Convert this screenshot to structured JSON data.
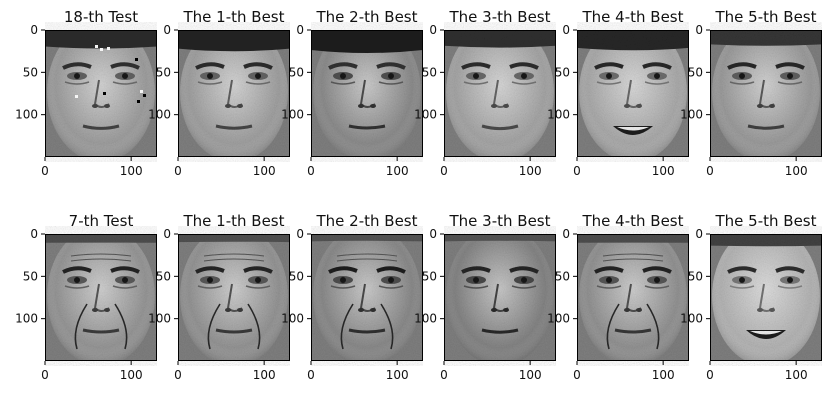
{
  "figure": {
    "rows": [
      {
        "panels": [
          {
            "title": "18-th Test",
            "face": {
              "tone": 138,
              "hair": 0.75,
              "smile": 0.1,
              "eyebrow": 0.55,
              "noise": true
            }
          },
          {
            "title": "The 1-th Best",
            "face": {
              "tone": 140,
              "hair": 0.9,
              "smile": 0.05,
              "eyebrow": 0.65,
              "noise": false
            }
          },
          {
            "title": "The 2-th Best",
            "face": {
              "tone": 120,
              "hair": 1.0,
              "smile": 0.0,
              "eyebrow": 0.5,
              "noise": false
            }
          },
          {
            "title": "The 3-th Best",
            "face": {
              "tone": 145,
              "hair": 0.7,
              "smile": 0.15,
              "eyebrow": 0.6,
              "noise": false
            }
          },
          {
            "title": "The 4-th Best",
            "face": {
              "tone": 150,
              "hair": 0.85,
              "smile": 1.0,
              "eyebrow": 0.7,
              "noise": false
            }
          },
          {
            "title": "The 5-th Best",
            "face": {
              "tone": 135,
              "hair": 0.6,
              "smile": 0.05,
              "eyebrow": 0.75,
              "noise": false
            }
          }
        ]
      },
      {
        "panels": [
          {
            "title": "7-th Test",
            "face": {
              "tone": 130,
              "hair": 0.2,
              "smile": 0.0,
              "eyebrow": 0.85,
              "noise": false,
              "wrinkles": true
            }
          },
          {
            "title": "The 1-th Best",
            "face": {
              "tone": 128,
              "hair": 0.15,
              "smile": 0.0,
              "eyebrow": 0.8,
              "noise": false,
              "wrinkles": true
            }
          },
          {
            "title": "The 2-th Best",
            "face": {
              "tone": 118,
              "hair": 0.1,
              "smile": 0.0,
              "eyebrow": 0.95,
              "noise": false,
              "wrinkles": true
            }
          },
          {
            "title": "The 3-th Best",
            "face": {
              "tone": 112,
              "hair": 0.1,
              "smile": 0.05,
              "eyebrow": 0.8,
              "noise": false,
              "wrinkles": false
            }
          },
          {
            "title": "The 4-th Best",
            "face": {
              "tone": 126,
              "hair": 0.2,
              "smile": 0.0,
              "eyebrow": 0.85,
              "noise": false,
              "wrinkles": true
            }
          },
          {
            "title": "The 5-th Best",
            "face": {
              "tone": 160,
              "hair": 0.4,
              "smile": 0.6,
              "eyebrow": 0.6,
              "noise": false,
              "wrinkles": false
            }
          }
        ]
      }
    ],
    "x_ticks": [
      0,
      100
    ],
    "y_ticks": [
      0,
      50,
      100
    ],
    "x_range": [
      0,
      130
    ],
    "y_range": [
      0,
      150
    ],
    "colors": {
      "background": "#ffffff",
      "axis": "#000000",
      "text": "#111111"
    }
  }
}
